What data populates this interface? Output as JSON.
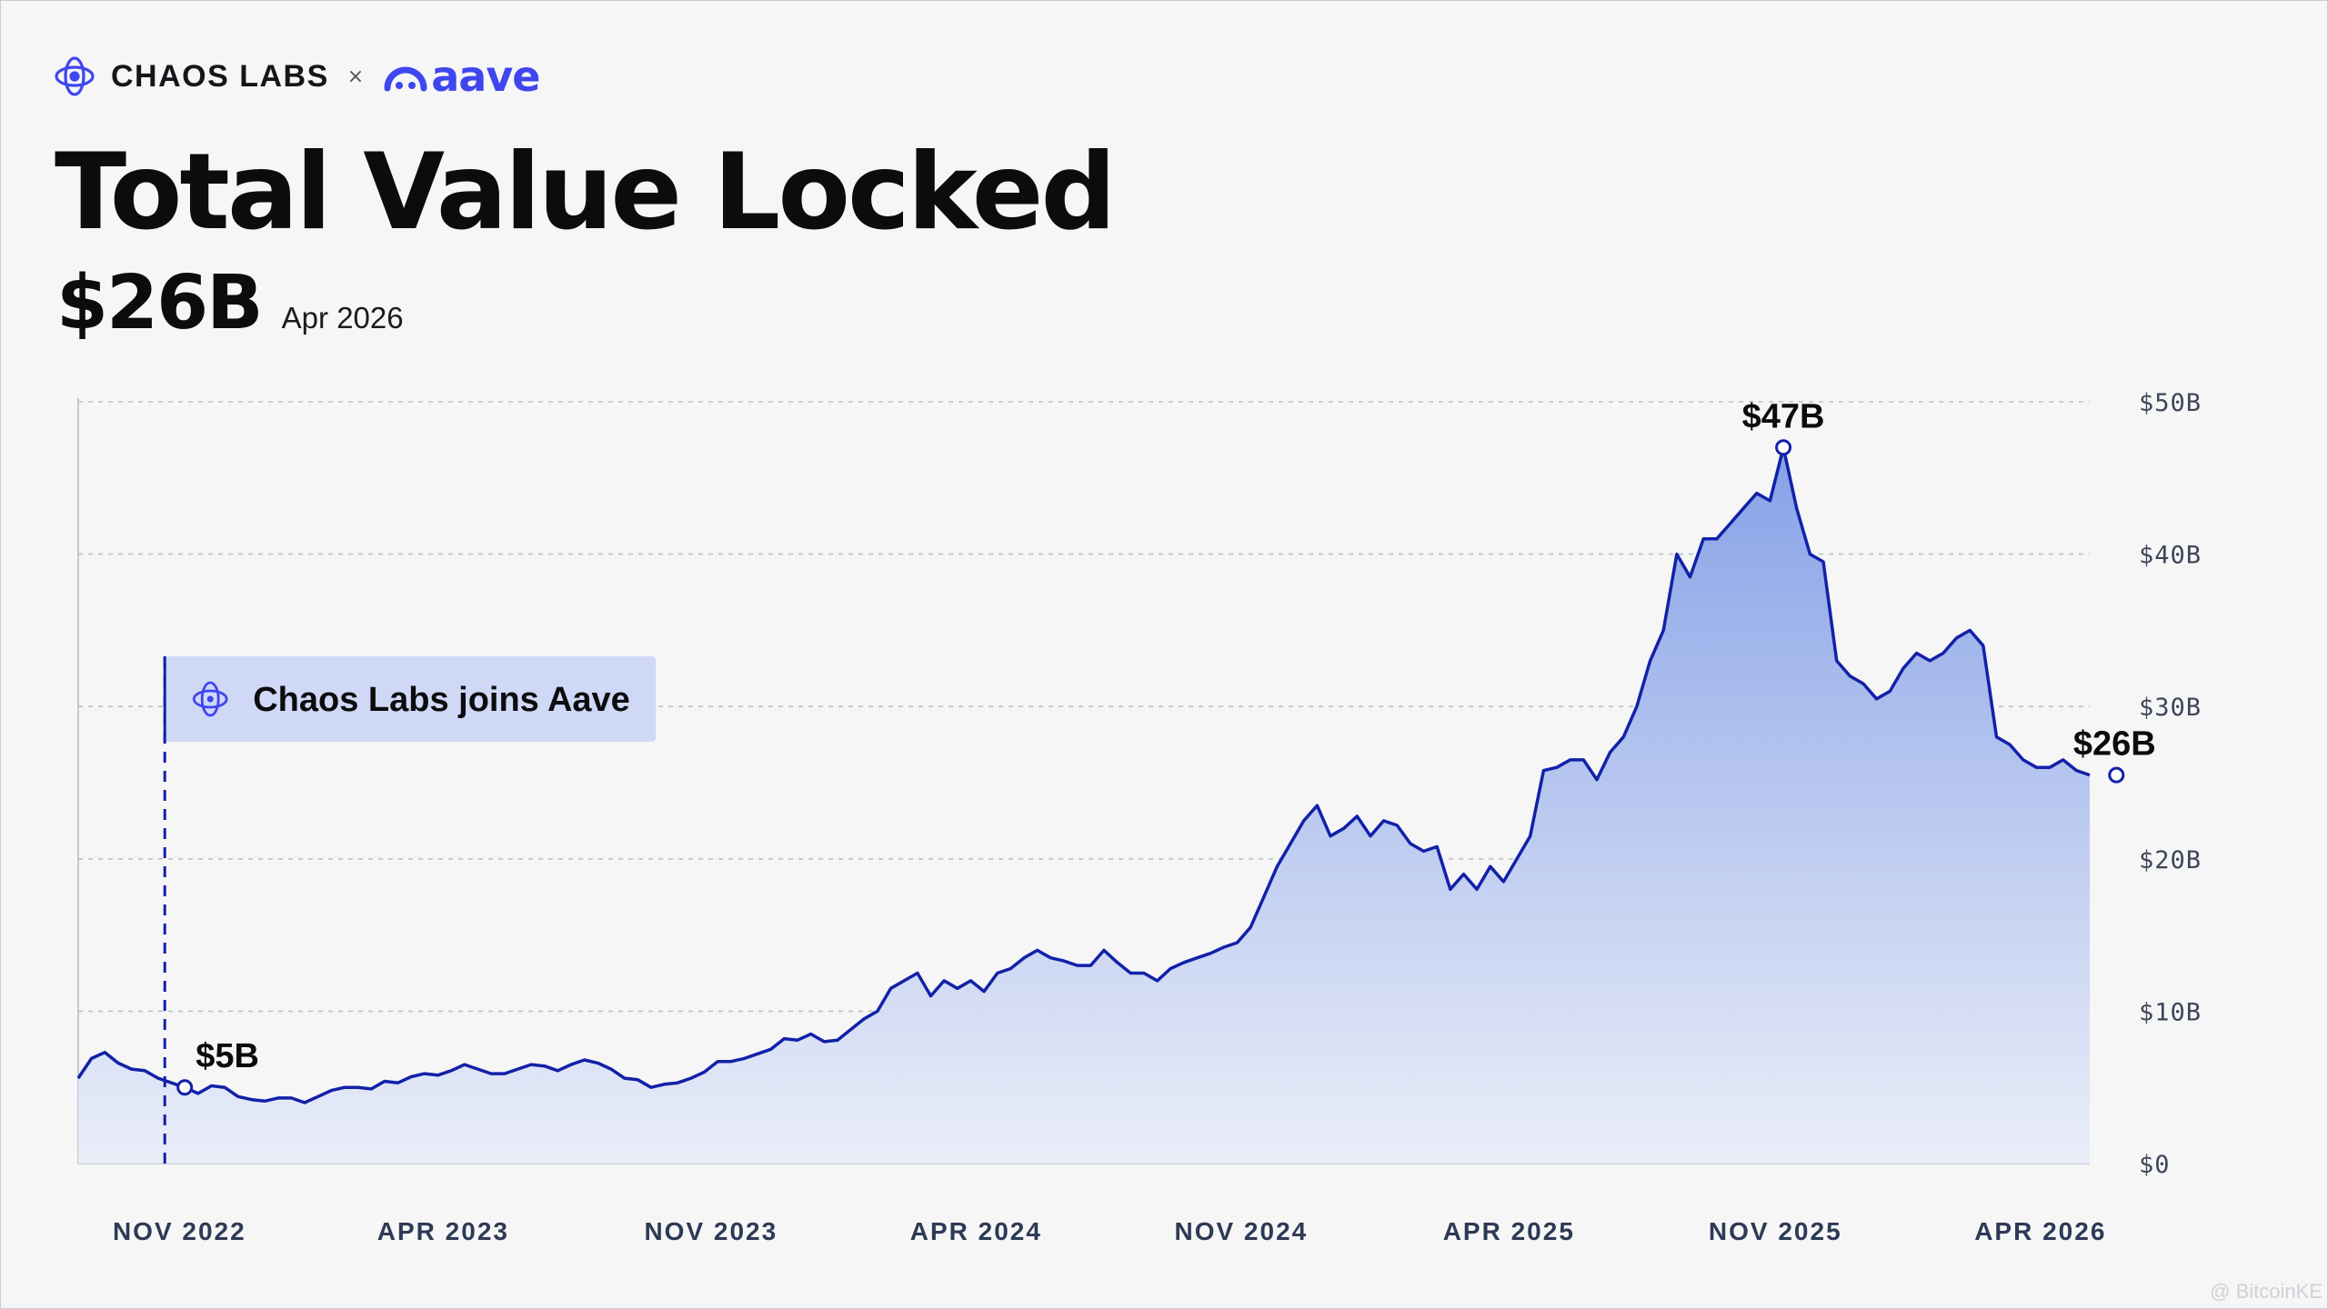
{
  "brand": {
    "left_name": "CHAOS LABS",
    "separator": "×",
    "right_name": "aave"
  },
  "header": {
    "title": "Total Value Locked",
    "current_value": "$26B",
    "current_date": "Apr 2026"
  },
  "watermark": "@ BitcoinKE",
  "colors": {
    "line": "#1221a8",
    "fill_top": "#7f9ce6",
    "fill_bottom": "#e9edf8",
    "event_bg": "#cfd8f5",
    "brand_blue": "#3f46ee"
  },
  "chart_data": {
    "type": "area",
    "title": "Total Value Locked",
    "xlabel": "",
    "ylabel": "",
    "unit": "$B",
    "ylim": [
      0,
      50
    ],
    "y_ticks": [
      0,
      10,
      20,
      30,
      40,
      50
    ],
    "y_tick_labels": [
      "$0",
      "$10B",
      "$20B",
      "$30B",
      "$40B",
      "$50B"
    ],
    "x_ticks": [
      "NOV 2022",
      "APR 2023",
      "NOV 2023",
      "APR 2024",
      "NOV 2024",
      "APR 2025",
      "NOV 2025",
      "APR 2026"
    ],
    "x_tick_index": [
      7.6,
      27.4,
      47.5,
      67.4,
      87.3,
      107.4,
      127.4,
      147.3
    ],
    "grid": true,
    "series": [
      {
        "name": "Total Value Locked",
        "values": [
          5.6,
          6.9,
          7.3,
          6.6,
          6.2,
          6.1,
          5.6,
          5.3,
          5.0,
          4.6,
          5.1,
          5.0,
          4.4,
          4.2,
          4.1,
          4.3,
          4.3,
          4.0,
          4.4,
          4.8,
          5.0,
          5.0,
          4.9,
          5.4,
          5.3,
          5.7,
          5.9,
          5.8,
          6.1,
          6.5,
          6.2,
          5.9,
          5.9,
          6.2,
          6.5,
          6.4,
          6.1,
          6.5,
          6.8,
          6.6,
          6.2,
          5.6,
          5.5,
          5.0,
          5.2,
          5.3,
          5.6,
          6.0,
          6.7,
          6.7,
          6.9,
          7.2,
          7.5,
          8.2,
          8.1,
          8.5,
          8.0,
          8.1,
          8.8,
          9.5,
          10.0,
          11.5,
          12.0,
          12.5,
          11.0,
          12.0,
          11.5,
          12.0,
          11.3,
          12.5,
          12.8,
          13.5,
          14.0,
          13.5,
          13.3,
          13.0,
          13.0,
          14.0,
          13.2,
          12.5,
          12.5,
          12.0,
          12.8,
          13.2,
          13.5,
          13.8,
          14.2,
          14.5,
          15.5,
          17.5,
          19.5,
          21.0,
          22.5,
          23.5,
          21.5,
          22.0,
          22.8,
          21.5,
          22.5,
          22.2,
          21.0,
          20.5,
          20.8,
          18.0,
          19.0,
          18.0,
          19.5,
          18.5,
          20.0,
          21.5,
          25.8,
          26.0,
          26.5,
          26.5,
          25.2,
          27.0,
          28.0,
          30.0,
          33.0,
          35.0,
          40.0,
          38.5,
          41.0,
          41.0,
          42.0,
          43.0,
          44.0,
          43.5,
          47.0,
          43.0,
          40.0,
          39.5,
          33.0,
          32.0,
          31.5,
          30.5,
          31.0,
          32.5,
          33.5,
          33.0,
          33.5,
          34.5,
          35.0,
          34.0,
          28.0,
          27.5,
          26.5,
          26.0,
          26.0,
          26.5,
          25.8,
          25.5
        ]
      }
    ],
    "annotations": [
      {
        "label": "$5B",
        "index": 8,
        "value": 5.0
      },
      {
        "label": "$47B",
        "index": 128,
        "value": 47.0
      },
      {
        "label": "$26B",
        "index": 153,
        "value": 25.5
      }
    ],
    "event": {
      "label": "Chaos Labs joins Aave",
      "index": 6.5
    }
  }
}
